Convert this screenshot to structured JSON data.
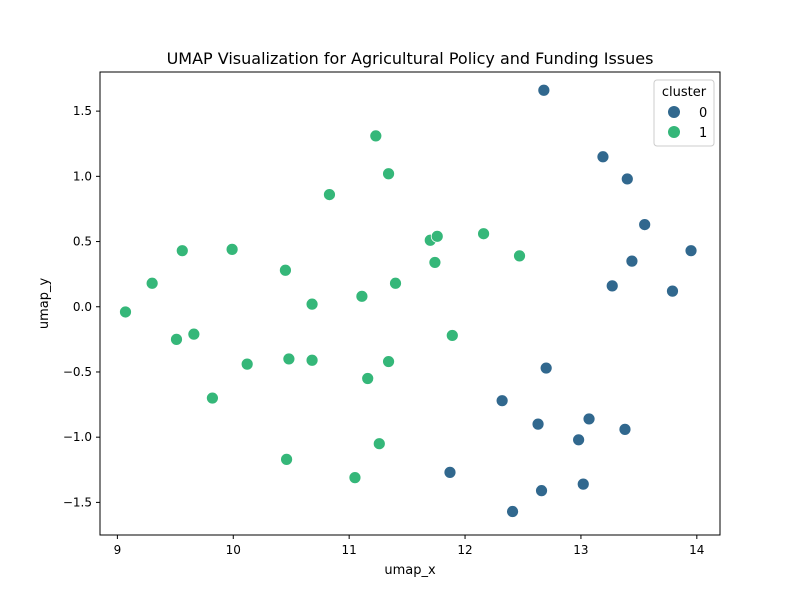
{
  "chart_data": {
    "type": "scatter",
    "title": "UMAP Visualization for Agricultural Policy and Funding Issues",
    "xlabel": "umap_x",
    "ylabel": "umap_y",
    "xlim": [
      8.85,
      14.2
    ],
    "ylim": [
      -1.75,
      1.8
    ],
    "xticks": [
      9,
      10,
      11,
      12,
      13,
      14
    ],
    "yticks": [
      -1.5,
      -1.0,
      -0.5,
      0.0,
      0.5,
      1.0,
      1.5
    ],
    "ytick_labels": [
      "−1.5",
      "−1.0",
      "−0.5",
      "0.0",
      "0.5",
      "1.0",
      "1.5"
    ],
    "grid": false,
    "legend": {
      "title": "cluster",
      "placement": "top-right"
    },
    "series": [
      {
        "name": "0",
        "color": "#31688e",
        "points": [
          [
            12.68,
            1.66
          ],
          [
            13.19,
            1.15
          ],
          [
            13.4,
            0.98
          ],
          [
            13.55,
            0.63
          ],
          [
            13.95,
            0.43
          ],
          [
            13.44,
            0.35
          ],
          [
            13.27,
            0.16
          ],
          [
            13.79,
            0.12
          ],
          [
            12.7,
            -0.47
          ],
          [
            12.32,
            -0.72
          ],
          [
            13.07,
            -0.86
          ],
          [
            12.63,
            -0.9
          ],
          [
            13.38,
            -0.94
          ],
          [
            12.98,
            -1.02
          ],
          [
            11.87,
            -1.27
          ],
          [
            13.02,
            -1.36
          ],
          [
            12.66,
            -1.41
          ],
          [
            12.41,
            -1.57
          ]
        ]
      },
      {
        "name": "1",
        "color": "#35b779",
        "points": [
          [
            11.23,
            1.31
          ],
          [
            11.34,
            1.02
          ],
          [
            10.83,
            0.86
          ],
          [
            11.7,
            0.51
          ],
          [
            11.76,
            0.54
          ],
          [
            12.16,
            0.56
          ],
          [
            12.47,
            0.39
          ],
          [
            11.74,
            0.34
          ],
          [
            9.56,
            0.43
          ],
          [
            9.99,
            0.44
          ],
          [
            10.45,
            0.28
          ],
          [
            9.3,
            0.18
          ],
          [
            11.4,
            0.18
          ],
          [
            11.11,
            0.08
          ],
          [
            10.68,
            0.02
          ],
          [
            9.07,
            -0.04
          ],
          [
            9.66,
            -0.21
          ],
          [
            9.51,
            -0.25
          ],
          [
            11.89,
            -0.22
          ],
          [
            10.48,
            -0.4
          ],
          [
            10.68,
            -0.41
          ],
          [
            11.34,
            -0.42
          ],
          [
            10.12,
            -0.44
          ],
          [
            11.16,
            -0.55
          ],
          [
            9.82,
            -0.7
          ],
          [
            11.26,
            -1.05
          ],
          [
            10.46,
            -1.17
          ],
          [
            11.05,
            -1.31
          ]
        ]
      }
    ]
  }
}
